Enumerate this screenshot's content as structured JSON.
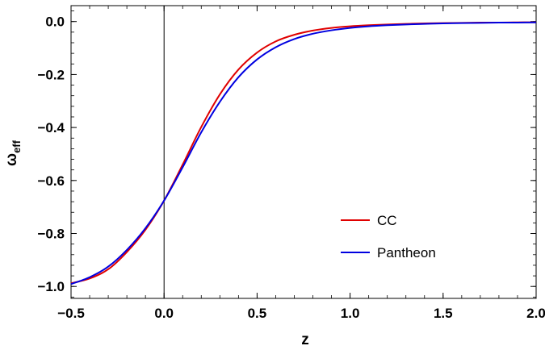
{
  "chart_data": {
    "type": "line",
    "xlabel": "z",
    "ylabel": "ω",
    "ylabel_sub": "eff",
    "xlim": [
      -0.5,
      2.0
    ],
    "ylim": [
      -1.045,
      0.06
    ],
    "xticks": [
      -0.5,
      0.0,
      0.5,
      1.0,
      1.5,
      2.0
    ],
    "xtick_labels": [
      "−0.5",
      "0.0",
      "0.5",
      "1.0",
      "1.5",
      "2.0"
    ],
    "yticks": [
      -1.0,
      -0.8,
      -0.6,
      -0.4,
      -0.2,
      0.0
    ],
    "ytick_labels": [
      "−1.0",
      "−0.8",
      "−0.6",
      "−0.4",
      "−0.2",
      "0.0"
    ],
    "grid": false,
    "legend_position": "bottom-right",
    "vertical_line_x": 0.0,
    "x": [
      -0.5,
      -0.4,
      -0.3,
      -0.2,
      -0.1,
      0.0,
      0.1,
      0.2,
      0.3,
      0.4,
      0.5,
      0.6,
      0.7,
      0.8,
      0.9,
      1.0,
      1.1,
      1.2,
      1.3,
      1.4,
      1.5,
      1.6,
      1.7,
      1.8,
      1.9,
      2.0
    ],
    "series": [
      {
        "name": "CC",
        "color": "#e00000",
        "values": [
          -0.988,
          -0.97,
          -0.935,
          -0.87,
          -0.786,
          -0.676,
          -0.54,
          -0.398,
          -0.275,
          -0.181,
          -0.117,
          -0.075,
          -0.05,
          -0.034,
          -0.024,
          -0.018,
          -0.014,
          -0.011,
          -0.009,
          -0.007,
          -0.006,
          -0.005,
          -0.004,
          -0.004,
          -0.003,
          -0.003
        ]
      },
      {
        "name": "Pantheon",
        "color": "#0000e0",
        "values": [
          -0.991,
          -0.965,
          -0.925,
          -0.862,
          -0.78,
          -0.676,
          -0.55,
          -0.418,
          -0.303,
          -0.21,
          -0.143,
          -0.097,
          -0.066,
          -0.046,
          -0.033,
          -0.024,
          -0.018,
          -0.014,
          -0.011,
          -0.009,
          -0.007,
          -0.006,
          -0.005,
          -0.004,
          -0.004,
          -0.003
        ]
      }
    ]
  }
}
